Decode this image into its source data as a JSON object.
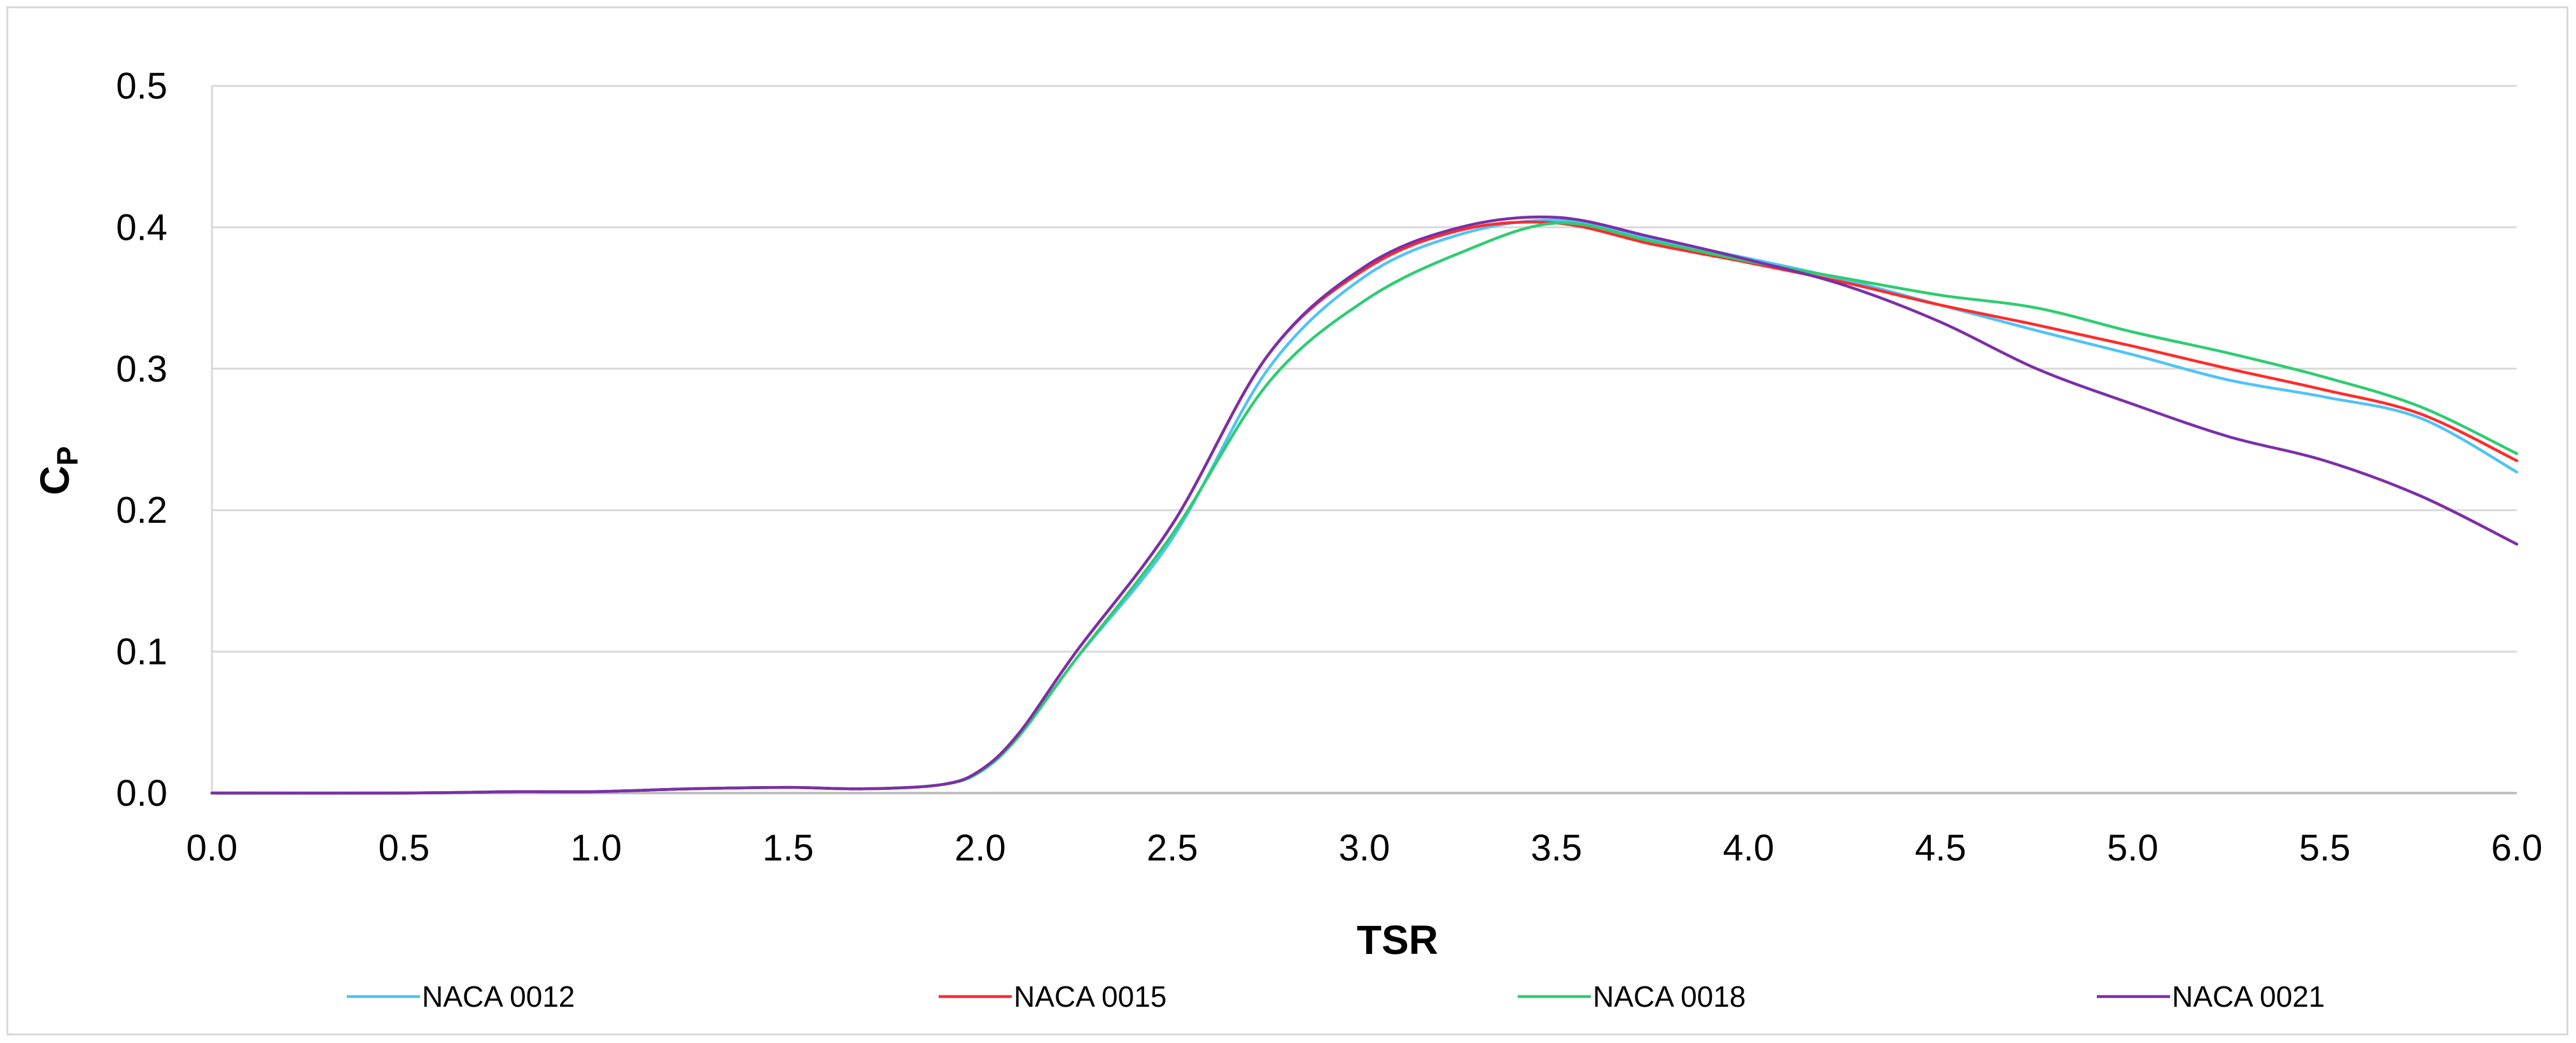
{
  "chart_data": {
    "type": "line",
    "title": "",
    "xlabel": "TSR",
    "ylabel_main": "C",
    "ylabel_sub": "P",
    "xlim": [
      0.0,
      6.0
    ],
    "ylim": [
      0.0,
      0.5
    ],
    "xticks": [
      0.0,
      0.5,
      1.0,
      1.5,
      2.0,
      2.5,
      3.0,
      3.5,
      4.0,
      4.5,
      5.0,
      5.5,
      6.0
    ],
    "yticks": [
      0.0,
      0.1,
      0.2,
      0.3,
      0.4,
      0.5
    ],
    "xtick_labels": [
      "0.0",
      "0.5",
      "1.0",
      "1.5",
      "2.0",
      "2.5",
      "3.0",
      "3.5",
      "4.0",
      "4.5",
      "5.0",
      "5.5",
      "6.0"
    ],
    "ytick_labels": [
      "0.0",
      "0.1",
      "0.2",
      "0.3",
      "0.4",
      "0.5"
    ],
    "grid": "horizontal",
    "legend_position": "bottom",
    "series": [
      {
        "name": "NACA 0012",
        "color": "#4fc3f7",
        "x": [
          0.0,
          0.5,
          0.8,
          1.0,
          1.25,
          1.5,
          1.7,
          1.9,
          2.0,
          2.1,
          2.25,
          2.5,
          2.75,
          3.0,
          3.25,
          3.5,
          3.75,
          4.0,
          4.25,
          4.5,
          4.75,
          5.0,
          5.25,
          5.5,
          5.75,
          6.0
        ],
        "y": [
          0.0,
          0.0,
          0.001,
          0.001,
          0.003,
          0.004,
          0.003,
          0.006,
          0.015,
          0.04,
          0.095,
          0.18,
          0.3,
          0.365,
          0.395,
          0.405,
          0.392,
          0.378,
          0.363,
          0.345,
          0.327,
          0.31,
          0.292,
          0.28,
          0.265,
          0.227
        ]
      },
      {
        "name": "NACA 0015",
        "color": "#ff2b2b",
        "x": [
          0.0,
          0.5,
          0.8,
          1.0,
          1.25,
          1.5,
          1.7,
          1.9,
          2.0,
          2.1,
          2.25,
          2.5,
          2.75,
          3.0,
          3.25,
          3.5,
          3.75,
          4.0,
          4.25,
          4.5,
          4.75,
          5.0,
          5.25,
          5.5,
          5.75,
          6.0
        ],
        "y": [
          0.0,
          0.0,
          0.001,
          0.001,
          0.003,
          0.004,
          0.003,
          0.006,
          0.016,
          0.042,
          0.1,
          0.19,
          0.31,
          0.37,
          0.398,
          0.403,
          0.388,
          0.375,
          0.361,
          0.345,
          0.331,
          0.316,
          0.3,
          0.285,
          0.268,
          0.235
        ]
      },
      {
        "name": "NACA 0018",
        "color": "#2ecc71",
        "x": [
          0.0,
          0.5,
          0.8,
          1.0,
          1.25,
          1.5,
          1.7,
          1.9,
          2.0,
          2.1,
          2.25,
          2.5,
          2.75,
          3.0,
          3.25,
          3.5,
          3.75,
          4.0,
          4.25,
          4.5,
          4.75,
          5.0,
          5.25,
          5.5,
          5.75,
          6.0
        ],
        "y": [
          0.0,
          0.0,
          0.001,
          0.001,
          0.003,
          0.004,
          0.003,
          0.006,
          0.015,
          0.04,
          0.095,
          0.183,
          0.29,
          0.348,
          0.382,
          0.403,
          0.39,
          0.376,
          0.364,
          0.352,
          0.343,
          0.326,
          0.311,
          0.294,
          0.273,
          0.24
        ]
      },
      {
        "name": "NACA 0021",
        "color": "#7b2fa8",
        "x": [
          0.0,
          0.5,
          0.8,
          1.0,
          1.25,
          1.5,
          1.7,
          1.9,
          2.0,
          2.1,
          2.25,
          2.5,
          2.75,
          3.0,
          3.25,
          3.5,
          3.75,
          4.0,
          4.25,
          4.5,
          4.75,
          5.0,
          5.25,
          5.5,
          5.75,
          6.0
        ],
        "y": [
          0.0,
          0.0,
          0.001,
          0.001,
          0.003,
          0.004,
          0.003,
          0.006,
          0.016,
          0.042,
          0.1,
          0.19,
          0.31,
          0.372,
          0.4,
          0.407,
          0.393,
          0.377,
          0.359,
          0.333,
          0.3,
          0.275,
          0.252,
          0.235,
          0.21,
          0.176
        ]
      }
    ]
  }
}
